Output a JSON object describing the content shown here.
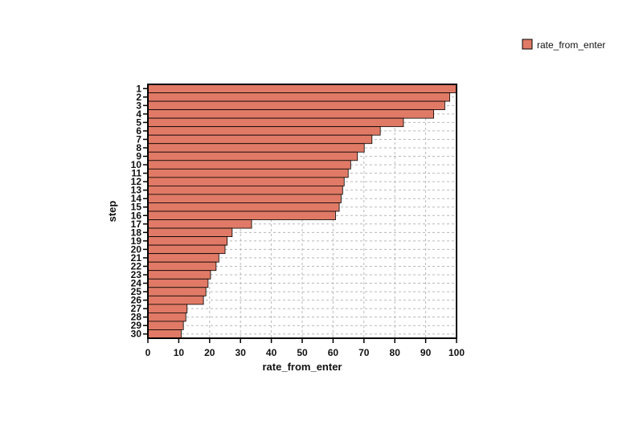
{
  "chart_data": {
    "type": "bar",
    "orientation": "horizontal",
    "xlabel": "rate_from_enter",
    "ylabel": "step",
    "xlim": [
      0,
      100
    ],
    "xticks": [
      0,
      10,
      20,
      30,
      40,
      50,
      60,
      70,
      80,
      90,
      100
    ],
    "grid": true,
    "legend_position": "top-right",
    "categories": [
      "1",
      "2",
      "3",
      "4",
      "5",
      "6",
      "7",
      "8",
      "9",
      "10",
      "11",
      "12",
      "13",
      "14",
      "15",
      "16",
      "17",
      "18",
      "19",
      "20",
      "21",
      "22",
      "23",
      "24",
      "25",
      "26",
      "27",
      "28",
      "29",
      "30"
    ],
    "series": [
      {
        "name": "rate_from_enter",
        "color": "#e07a66",
        "values": [
          100,
          97.8,
          96.2,
          92.6,
          82.8,
          75.3,
          72.6,
          70.1,
          67.9,
          65.7,
          64.9,
          63.6,
          63.1,
          62.6,
          62.0,
          60.8,
          33.6,
          27.3,
          25.7,
          25.0,
          23.0,
          22.1,
          20.3,
          19.5,
          18.8,
          18.0,
          12.7,
          12.3,
          11.5,
          10.8
        ]
      }
    ]
  }
}
